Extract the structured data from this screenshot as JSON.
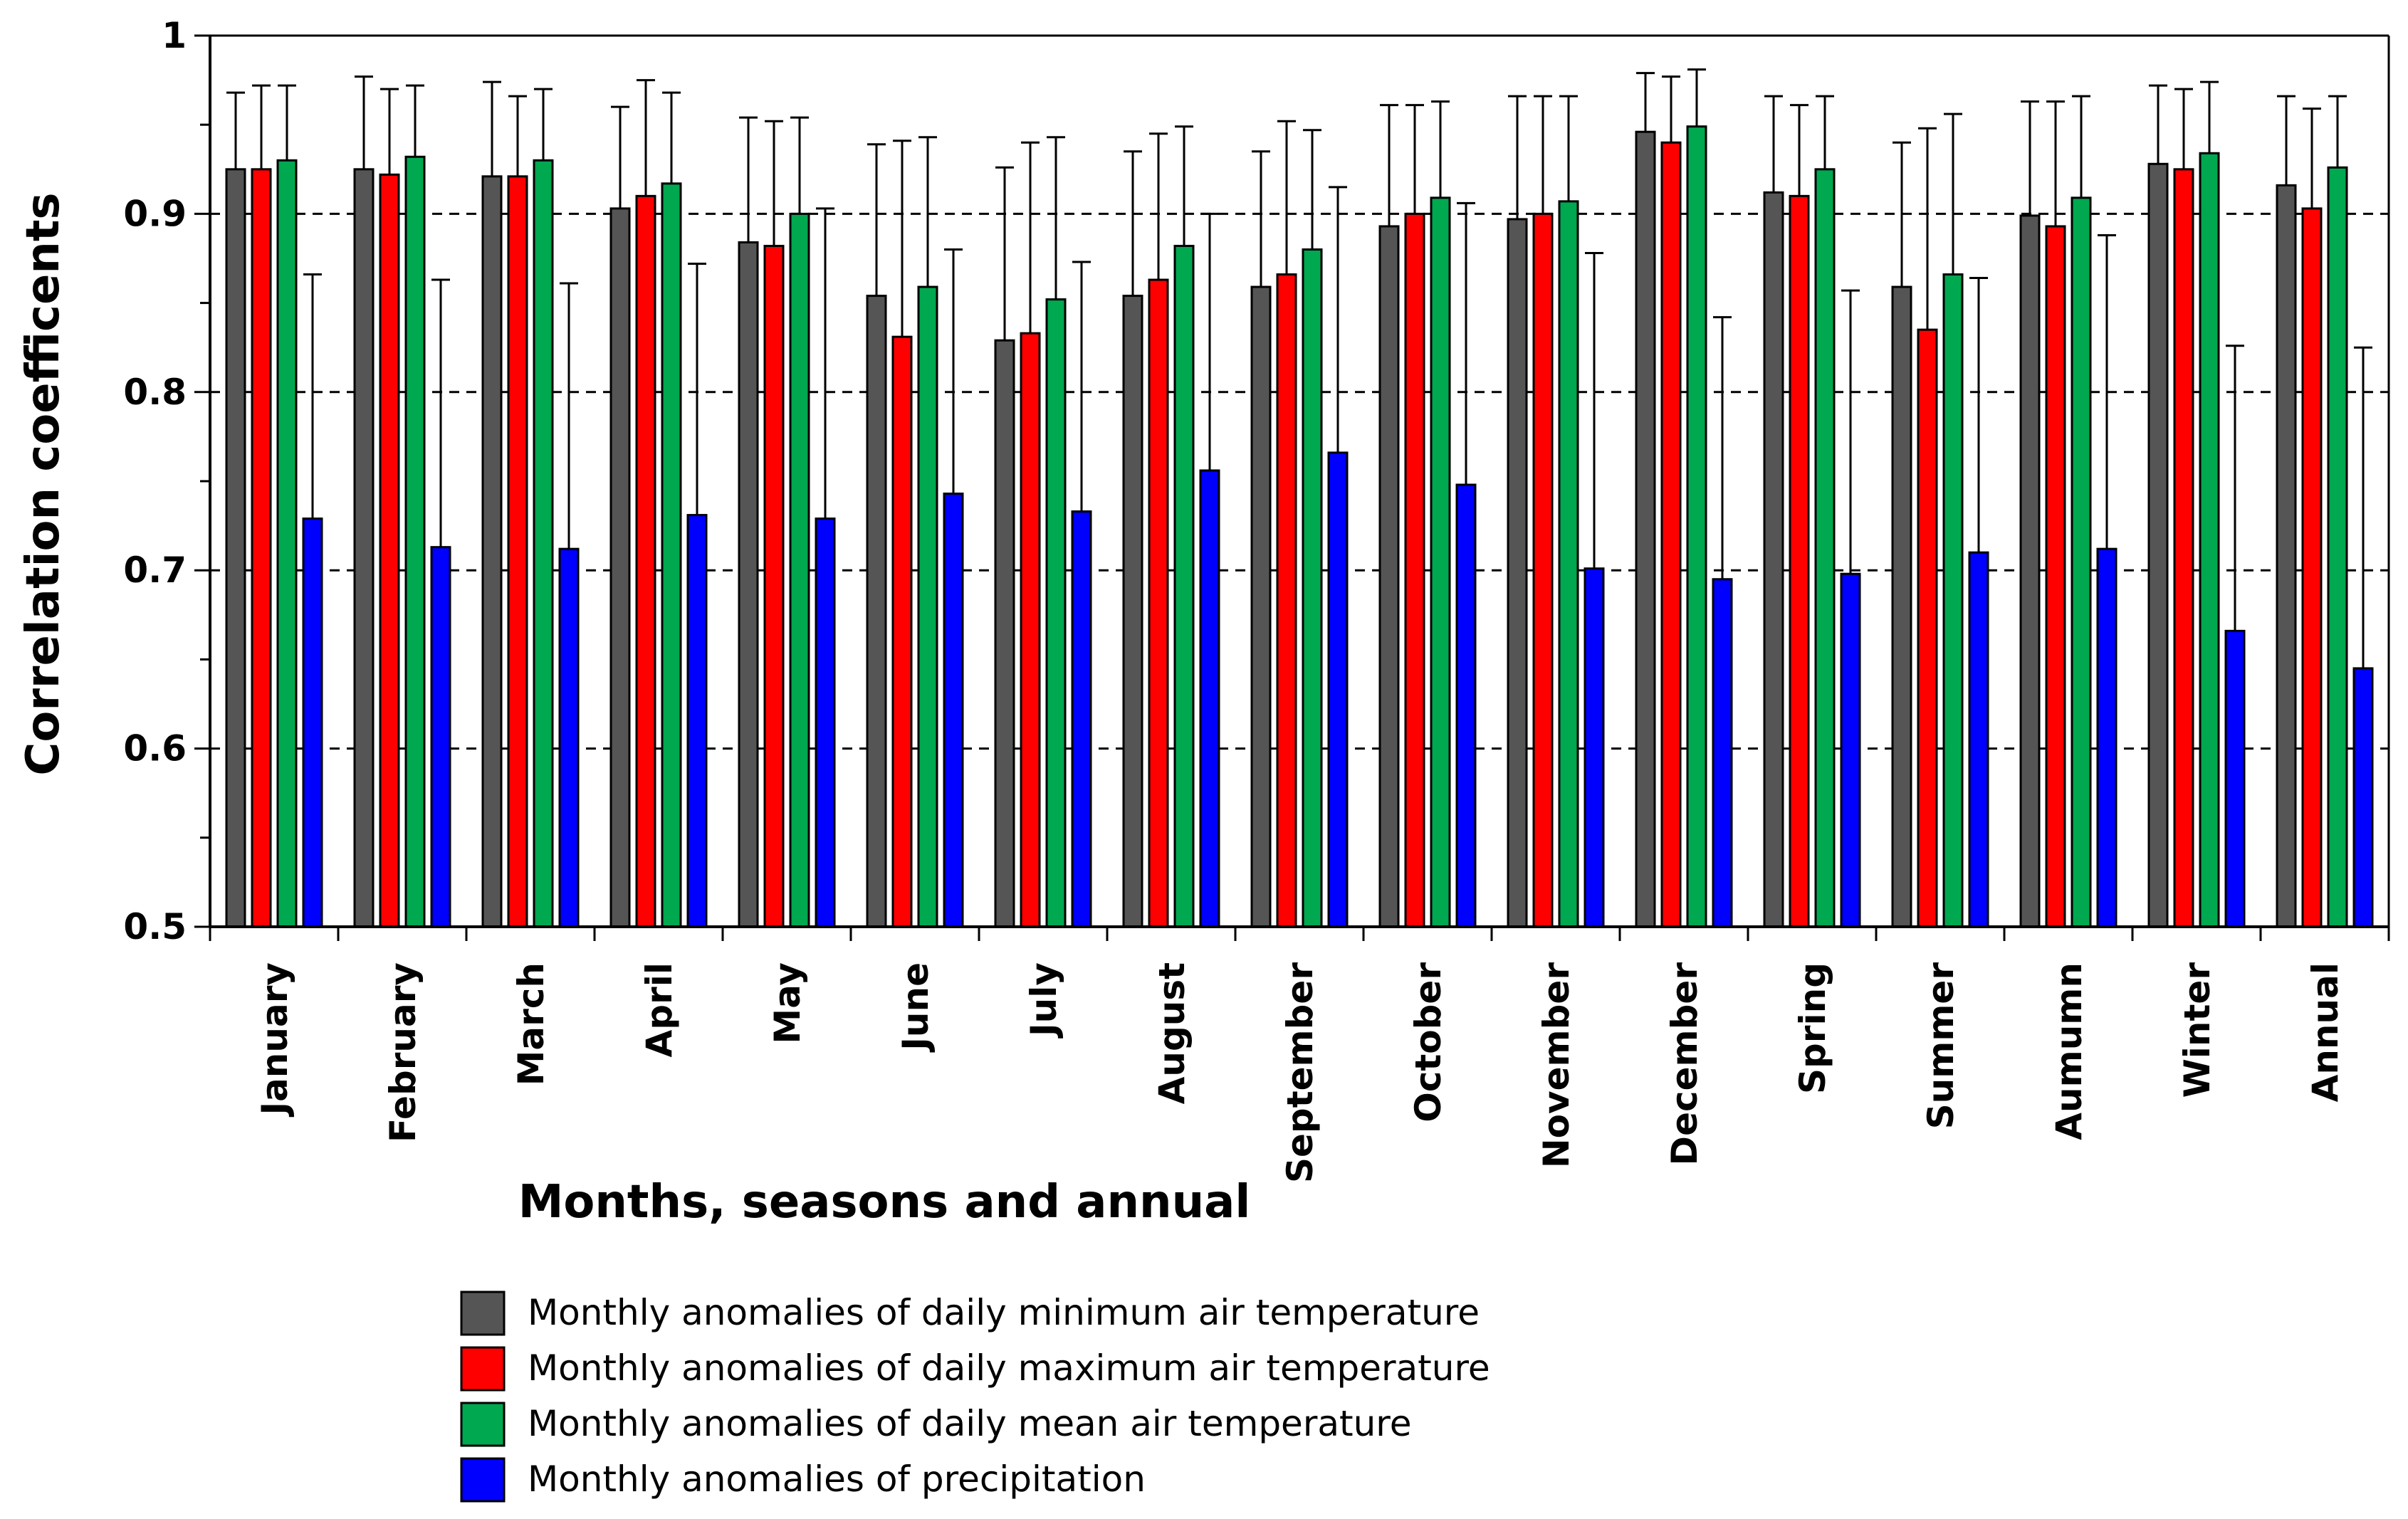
{
  "chart_data": {
    "type": "bar",
    "title": "",
    "xlabel": "Months, seasons and annual",
    "ylabel": "Correlation coefficents",
    "ylim": [
      0.5,
      1.0
    ],
    "yticks": [
      "0.5",
      "0.6",
      "0.7",
      "0.8",
      "0.9",
      "1"
    ],
    "grid": "horizontal dashed at 0.6, 0.7, 0.8, 0.9",
    "legend_position": "bottom",
    "categories": [
      "January",
      "February",
      "March",
      "April",
      "May",
      "June",
      "July",
      "August",
      "September",
      "October",
      "November",
      "December",
      "Spring",
      "Summer",
      "Aumumn",
      "Winter",
      "Annual"
    ],
    "series": [
      {
        "name": "Monthly anomalies of daily minimum air temperature",
        "color": "#555555",
        "values": [
          0.925,
          0.925,
          0.921,
          0.903,
          0.884,
          0.854,
          0.829,
          0.854,
          0.859,
          0.893,
          0.897,
          0.946,
          0.912,
          0.859,
          0.899,
          0.928,
          0.916
        ],
        "errors": [
          0.043,
          0.052,
          0.053,
          0.057,
          0.07,
          0.085,
          0.097,
          0.081,
          0.076,
          0.068,
          0.069,
          0.033,
          0.054,
          0.081,
          0.064,
          0.044,
          0.05
        ]
      },
      {
        "name": "Monthly anomalies of daily maximum air temperature",
        "color": "#ff0000",
        "values": [
          0.925,
          0.922,
          0.921,
          0.91,
          0.882,
          0.831,
          0.833,
          0.863,
          0.866,
          0.9,
          0.9,
          0.94,
          0.91,
          0.835,
          0.893,
          0.925,
          0.903
        ],
        "errors": [
          0.047,
          0.048,
          0.045,
          0.065,
          0.07,
          0.11,
          0.107,
          0.082,
          0.086,
          0.061,
          0.066,
          0.037,
          0.051,
          0.113,
          0.07,
          0.045,
          0.056
        ]
      },
      {
        "name": "Monthly anomalies of daily mean air temperature",
        "color": "#00a850",
        "values": [
          0.93,
          0.932,
          0.93,
          0.917,
          0.9,
          0.859,
          0.852,
          0.882,
          0.88,
          0.909,
          0.907,
          0.949,
          0.925,
          0.866,
          0.909,
          0.934,
          0.926
        ],
        "errors": [
          0.042,
          0.04,
          0.04,
          0.051,
          0.054,
          0.084,
          0.091,
          0.067,
          0.067,
          0.054,
          0.059,
          0.032,
          0.041,
          0.09,
          0.057,
          0.04,
          0.04
        ]
      },
      {
        "name": "Monthly anomalies of precipitation",
        "color": "#0000ff",
        "values": [
          0.729,
          0.713,
          0.712,
          0.731,
          0.729,
          0.743,
          0.733,
          0.756,
          0.766,
          0.748,
          0.701,
          0.695,
          0.698,
          0.71,
          0.712,
          0.666,
          0.645
        ],
        "errors": [
          0.137,
          0.15,
          0.149,
          0.141,
          0.174,
          0.137,
          0.14,
          0.144,
          0.149,
          0.158,
          0.177,
          0.147,
          0.159,
          0.154,
          0.176,
          0.16,
          0.18
        ]
      }
    ]
  }
}
